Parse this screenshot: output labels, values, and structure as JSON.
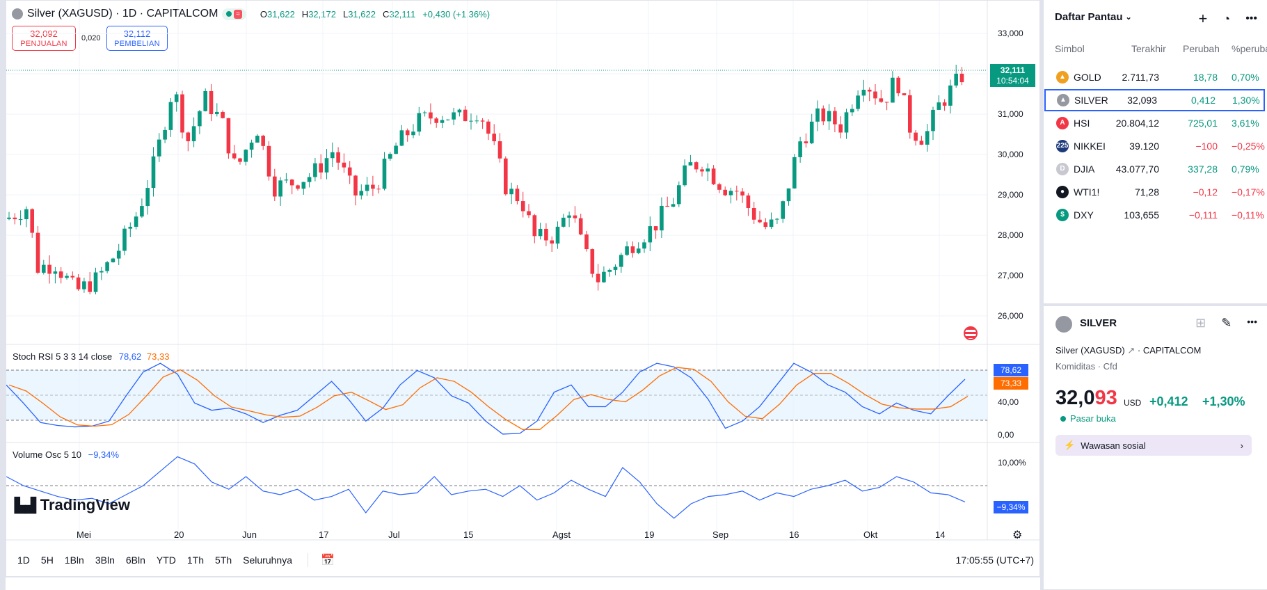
{
  "header": {
    "symbol_title": "Silver (XAGUSD) · 1D · CAPITALCOM",
    "ohlc": [
      {
        "k": "O",
        "v": "31,622"
      },
      {
        "k": "H",
        "v": "32,172"
      },
      {
        "k": "L",
        "v": "31,622"
      },
      {
        "k": "C",
        "v": "32,111"
      }
    ],
    "change": "+0,430 (+1,36%)",
    "pill_icon": "≈"
  },
  "trade": {
    "sell_price": "32,092",
    "sell_label": "PENJUALAN",
    "spread": "0,020",
    "buy_price": "32,112",
    "buy_label": "PEMBELIAN"
  },
  "price_axis": [
    "33,000",
    "32,000",
    "31,000",
    "30,000",
    "29,000",
    "28,000",
    "27,000",
    "26,000"
  ],
  "price_tag": {
    "price": "32,111",
    "countdown": "10:54:04"
  },
  "stoch": {
    "label": "Stoch RSI 5 3 3 14 close",
    "k": "78,62",
    "d": "73,33",
    "axis": [
      "40,00",
      "0,00"
    ]
  },
  "volosc": {
    "label": "Volume Osc 5 10",
    "value": "−9,34%",
    "axis": [
      "10,00%"
    ]
  },
  "time_axis": [
    "Mei",
    "20",
    "Jun",
    "17",
    "Jul",
    "15",
    "Agst",
    "19",
    "Sep",
    "16",
    "Okt",
    "14"
  ],
  "timeframes": [
    "1D",
    "5H",
    "1Bln",
    "3Bln",
    "6Bln",
    "YTD",
    "1Th",
    "5Th",
    "Seluruhnya"
  ],
  "clock": "17:05:55 (UTC+7)",
  "logo": "TradingView",
  "watchlist": {
    "title": "Daftar Pantau",
    "columns": [
      "Simbol",
      "Terakhir",
      "Perubahan",
      "%perubahan"
    ],
    "rows": [
      {
        "icon": "gold-icon",
        "badge": "▲",
        "color": "#f0a020",
        "symbol": "GOLD",
        "last": "2.711,73",
        "chg": "18,78",
        "pct": "0,70%",
        "dir": "up"
      },
      {
        "icon": "silver-icon",
        "badge": "▲",
        "color": "#9598a1",
        "symbol": "SILVER",
        "last": "32,093",
        "chg": "0,412",
        "pct": "1,30%",
        "dir": "up"
      },
      {
        "icon": "hsi-icon",
        "badge": "A",
        "color": "#f23645",
        "symbol": "HSI",
        "last": "20.804,12",
        "chg": "725,01",
        "pct": "3,61%",
        "dir": "up"
      },
      {
        "icon": "nikkei-icon",
        "badge": "225",
        "color": "#1e3a7a",
        "symbol": "NIKKEI",
        "last": "39.120",
        "chg": "−100",
        "pct": "−0,25%",
        "dir": "dn"
      },
      {
        "icon": "djia-icon",
        "badge": "D",
        "color": "#c8c8d0",
        "symbol": "DJIA",
        "last": "43.077,70",
        "chg": "337,28",
        "pct": "0,79%",
        "dir": "up"
      },
      {
        "icon": "wti-icon",
        "badge": "●",
        "color": "#131722",
        "symbol": "WTI1!",
        "last": "71,28",
        "chg": "−0,12",
        "pct": "−0,17%",
        "dir": "dn"
      },
      {
        "icon": "dxy-icon",
        "badge": "$",
        "color": "#089981",
        "symbol": "DXY",
        "last": "103,655",
        "chg": "−0,111",
        "pct": "−0,11%",
        "dir": "dn"
      }
    ]
  },
  "details": {
    "title": "SILVER",
    "subtitle": "Silver (XAGUSD)",
    "exchange": "CAPITALCOM",
    "category": "Komiditas · Cfd",
    "price_main": "32,0",
    "price_tail": "93",
    "currency": "USD",
    "change": "+0,412",
    "change_pct": "+1,30%",
    "market_status": "Pasar buka",
    "social": "Wawasan sosial"
  },
  "colors": {
    "up": "#089981",
    "down": "#f23645",
    "accent": "#2962ff",
    "stoch_d": "#ff6d00"
  }
}
